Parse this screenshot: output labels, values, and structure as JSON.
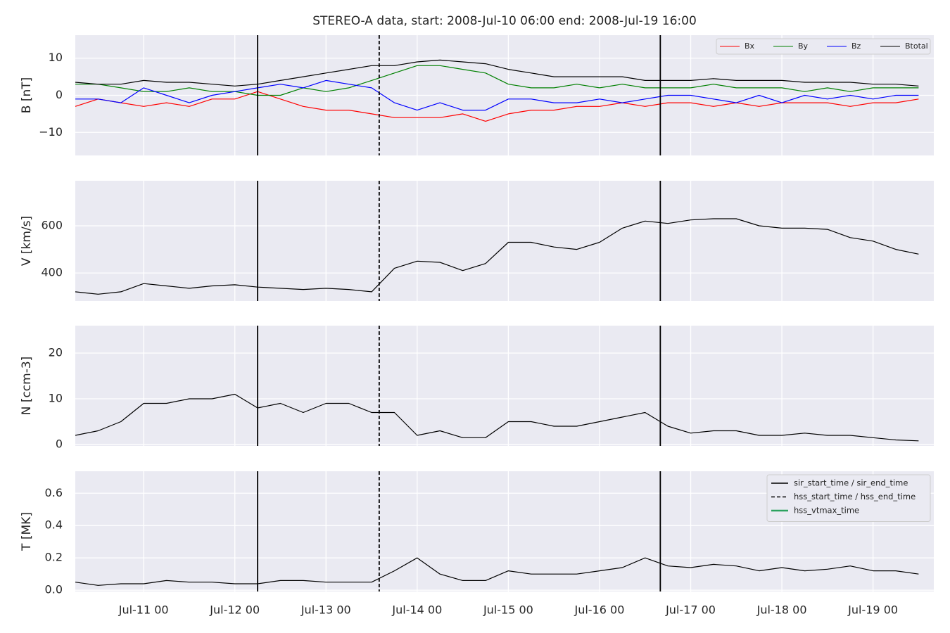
{
  "chart_data": [
    {
      "type": "line",
      "title": "STEREO-A data, start: 2008-Jul-10 06:00  end: 2008-Jul-19 16:00",
      "ylabel": "B [nT]",
      "x": [
        "2008-07-10T06:00",
        "2008-07-10T12:00",
        "2008-07-10T18:00",
        "2008-07-11T00:00",
        "2008-07-11T06:00",
        "2008-07-11T12:00",
        "2008-07-11T18:00",
        "2008-07-12T00:00",
        "2008-07-12T06:00",
        "2008-07-12T12:00",
        "2008-07-12T18:00",
        "2008-07-13T00:00",
        "2008-07-13T06:00",
        "2008-07-13T12:00",
        "2008-07-13T18:00",
        "2008-07-14T00:00",
        "2008-07-14T06:00",
        "2008-07-14T12:00",
        "2008-07-14T18:00",
        "2008-07-15T00:00",
        "2008-07-15T06:00",
        "2008-07-15T12:00",
        "2008-07-15T18:00",
        "2008-07-16T00:00",
        "2008-07-16T06:00",
        "2008-07-16T12:00",
        "2008-07-16T18:00",
        "2008-07-17T00:00",
        "2008-07-17T06:00",
        "2008-07-17T12:00",
        "2008-07-17T18:00",
        "2008-07-18T00:00",
        "2008-07-18T06:00",
        "2008-07-18T12:00",
        "2008-07-18T18:00",
        "2008-07-19T00:00",
        "2008-07-19T06:00",
        "2008-07-19T12:00"
      ],
      "series": [
        {
          "name": "Bx",
          "color": "#ff0000",
          "values": [
            -3,
            -1,
            -2,
            -3,
            -2,
            -3,
            -1,
            -1,
            1,
            -1,
            -3,
            -4,
            -4,
            -5,
            -6,
            -6,
            -6,
            -5,
            -7,
            -5,
            -4,
            -4,
            -3,
            -3,
            -2,
            -3,
            -2,
            -2,
            -3,
            -2,
            -3,
            -2,
            -2,
            -2,
            -3,
            -2,
            -2,
            -1
          ]
        },
        {
          "name": "By",
          "color": "#008000",
          "values": [
            3,
            3,
            2,
            1,
            1,
            2,
            1,
            1,
            0,
            0,
            2,
            1,
            2,
            4,
            6,
            8,
            8,
            7,
            6,
            3,
            2,
            2,
            3,
            2,
            3,
            2,
            2,
            2,
            3,
            2,
            2,
            2,
            1,
            2,
            1,
            2,
            2,
            2
          ]
        },
        {
          "name": "Bz",
          "color": "#0000ff",
          "values": [
            -1,
            -1,
            -2,
            2,
            0,
            -2,
            0,
            1,
            2,
            3,
            2,
            4,
            3,
            2,
            -2,
            -4,
            -2,
            -4,
            -4,
            -1,
            -1,
            -2,
            -2,
            -1,
            -2,
            -1,
            0,
            0,
            -1,
            -2,
            0,
            -2,
            0,
            -1,
            0,
            -1,
            0,
            0
          ]
        },
        {
          "name": "Btotal",
          "color": "#000000",
          "values": [
            3.5,
            3,
            3,
            4,
            3.5,
            3.5,
            3,
            2.5,
            3,
            4,
            5,
            6,
            7,
            8,
            8,
            9,
            9.5,
            9,
            8.5,
            7,
            6,
            5,
            5,
            5,
            5,
            4,
            4,
            4,
            4.5,
            4,
            4,
            4,
            3.5,
            3.5,
            3.5,
            3,
            3,
            2.5
          ]
        }
      ],
      "xlim": [
        "2008-07-10T06:00",
        "2008-07-19T16:00"
      ],
      "xticks": [
        "2008-07-11T00:00",
        "2008-07-12T00:00",
        "2008-07-13T00:00",
        "2008-07-14T00:00",
        "2008-07-15T00:00",
        "2008-07-16T00:00",
        "2008-07-17T00:00",
        "2008-07-18T00:00",
        "2008-07-19T00:00"
      ],
      "ylim": [
        -16.2,
        16.2
      ],
      "yticks": [
        {
          "value": -10,
          "label": "−10"
        },
        0,
        10
      ],
      "grid": true,
      "legend": "upper-right"
    },
    {
      "type": "line",
      "ylabel": "V [km/s]",
      "x": [
        "2008-07-10T06:00",
        "2008-07-10T12:00",
        "2008-07-10T18:00",
        "2008-07-11T00:00",
        "2008-07-11T06:00",
        "2008-07-11T12:00",
        "2008-07-11T18:00",
        "2008-07-12T00:00",
        "2008-07-12T06:00",
        "2008-07-12T12:00",
        "2008-07-12T18:00",
        "2008-07-13T00:00",
        "2008-07-13T06:00",
        "2008-07-13T12:00",
        "2008-07-13T18:00",
        "2008-07-14T00:00",
        "2008-07-14T06:00",
        "2008-07-14T12:00",
        "2008-07-14T18:00",
        "2008-07-15T00:00",
        "2008-07-15T06:00",
        "2008-07-15T12:00",
        "2008-07-15T18:00",
        "2008-07-16T00:00",
        "2008-07-16T06:00",
        "2008-07-16T12:00",
        "2008-07-16T18:00",
        "2008-07-17T00:00",
        "2008-07-17T06:00",
        "2008-07-17T12:00",
        "2008-07-17T18:00",
        "2008-07-18T00:00",
        "2008-07-18T06:00",
        "2008-07-18T12:00",
        "2008-07-18T18:00",
        "2008-07-19T00:00",
        "2008-07-19T06:00",
        "2008-07-19T12:00"
      ],
      "values": [
        320,
        310,
        320,
        355,
        345,
        335,
        345,
        350,
        340,
        335,
        330,
        335,
        330,
        320,
        420,
        450,
        445,
        410,
        440,
        530,
        530,
        510,
        500,
        530,
        590,
        620,
        610,
        625,
        630,
        630,
        600,
        590,
        590,
        585,
        550,
        535,
        500,
        480
      ],
      "color": "#000000",
      "xlim": [
        "2008-07-10T06:00",
        "2008-07-19T16:00"
      ],
      "xticks": [
        "2008-07-11T00:00",
        "2008-07-12T00:00",
        "2008-07-13T00:00",
        "2008-07-14T00:00",
        "2008-07-15T00:00",
        "2008-07-16T00:00",
        "2008-07-17T00:00",
        "2008-07-18T00:00",
        "2008-07-19T00:00"
      ],
      "ylim": [
        281,
        791
      ],
      "yticks": [
        400,
        600
      ],
      "grid": true
    },
    {
      "type": "line",
      "ylabel": "N [ccm-3]",
      "x": [
        "2008-07-10T06:00",
        "2008-07-10T12:00",
        "2008-07-10T18:00",
        "2008-07-11T00:00",
        "2008-07-11T06:00",
        "2008-07-11T12:00",
        "2008-07-11T18:00",
        "2008-07-12T00:00",
        "2008-07-12T06:00",
        "2008-07-12T12:00",
        "2008-07-12T18:00",
        "2008-07-13T00:00",
        "2008-07-13T06:00",
        "2008-07-13T12:00",
        "2008-07-13T18:00",
        "2008-07-14T00:00",
        "2008-07-14T06:00",
        "2008-07-14T12:00",
        "2008-07-14T18:00",
        "2008-07-15T00:00",
        "2008-07-15T06:00",
        "2008-07-15T12:00",
        "2008-07-15T18:00",
        "2008-07-16T00:00",
        "2008-07-16T06:00",
        "2008-07-16T12:00",
        "2008-07-16T18:00",
        "2008-07-17T00:00",
        "2008-07-17T06:00",
        "2008-07-17T12:00",
        "2008-07-17T18:00",
        "2008-07-18T00:00",
        "2008-07-18T06:00",
        "2008-07-18T12:00",
        "2008-07-18T18:00",
        "2008-07-19T00:00",
        "2008-07-19T06:00",
        "2008-07-19T12:00"
      ],
      "values": [
        2,
        3,
        5,
        9,
        9,
        10,
        10,
        11,
        8,
        9,
        7,
        9,
        9,
        7,
        7,
        2,
        3,
        1.5,
        1.5,
        5,
        5,
        4,
        4,
        5,
        6,
        7,
        4,
        2.5,
        3,
        3,
        2,
        2,
        2.5,
        2,
        2,
        1.5,
        1,
        0.8
      ],
      "color": "#000000",
      "xlim": [
        "2008-07-10T06:00",
        "2008-07-19T16:00"
      ],
      "xticks": [
        "2008-07-11T00:00",
        "2008-07-12T00:00",
        "2008-07-13T00:00",
        "2008-07-14T00:00",
        "2008-07-15T00:00",
        "2008-07-16T00:00",
        "2008-07-17T00:00",
        "2008-07-18T00:00",
        "2008-07-19T00:00"
      ],
      "ylim": [
        -0.3,
        26
      ],
      "yticks": [
        0,
        10,
        20
      ],
      "grid": true
    },
    {
      "type": "line",
      "ylabel": "T [MK]",
      "x": [
        "2008-07-10T06:00",
        "2008-07-10T12:00",
        "2008-07-10T18:00",
        "2008-07-11T00:00",
        "2008-07-11T06:00",
        "2008-07-11T12:00",
        "2008-07-11T18:00",
        "2008-07-12T00:00",
        "2008-07-12T06:00",
        "2008-07-12T12:00",
        "2008-07-12T18:00",
        "2008-07-13T00:00",
        "2008-07-13T06:00",
        "2008-07-13T12:00",
        "2008-07-13T18:00",
        "2008-07-14T00:00",
        "2008-07-14T06:00",
        "2008-07-14T12:00",
        "2008-07-14T18:00",
        "2008-07-15T00:00",
        "2008-07-15T06:00",
        "2008-07-15T12:00",
        "2008-07-15T18:00",
        "2008-07-16T00:00",
        "2008-07-16T06:00",
        "2008-07-16T12:00",
        "2008-07-16T18:00",
        "2008-07-17T00:00",
        "2008-07-17T06:00",
        "2008-07-17T12:00",
        "2008-07-17T18:00",
        "2008-07-18T00:00",
        "2008-07-18T06:00",
        "2008-07-18T12:00",
        "2008-07-18T18:00",
        "2008-07-19T00:00",
        "2008-07-19T06:00",
        "2008-07-19T12:00"
      ],
      "values": [
        0.05,
        0.03,
        0.04,
        0.04,
        0.06,
        0.05,
        0.05,
        0.04,
        0.04,
        0.06,
        0.06,
        0.05,
        0.05,
        0.05,
        0.12,
        0.2,
        0.1,
        0.06,
        0.06,
        0.12,
        0.1,
        0.1,
        0.1,
        0.12,
        0.14,
        0.2,
        0.15,
        0.14,
        0.16,
        0.15,
        0.12,
        0.14,
        0.12,
        0.13,
        0.15,
        0.12,
        0.12,
        0.1
      ],
      "color": "#000000",
      "xlim": [
        "2008-07-10T06:00",
        "2008-07-19T16:00"
      ],
      "xticks": [
        {
          "value": "2008-07-11T00:00",
          "label": "Jul-11 00"
        },
        {
          "value": "2008-07-12T00:00",
          "label": "Jul-12 00"
        },
        {
          "value": "2008-07-13T00:00",
          "label": "Jul-13 00"
        },
        {
          "value": "2008-07-14T00:00",
          "label": "Jul-14 00"
        },
        {
          "value": "2008-07-15T00:00",
          "label": "Jul-15 00"
        },
        {
          "value": "2008-07-16T00:00",
          "label": "Jul-16 00"
        },
        {
          "value": "2008-07-17T00:00",
          "label": "Jul-17 00"
        },
        {
          "value": "2008-07-18T00:00",
          "label": "Jul-18 00"
        },
        {
          "value": "2008-07-19T00:00",
          "label": "Jul-19 00"
        }
      ],
      "ylim": [
        -0.008,
        0.736
      ],
      "yticks": [
        {
          "value": 0,
          "label": "0.0"
        },
        0.2,
        0.4,
        0.6
      ],
      "grid": true,
      "legend": "upper-right",
      "events": [
        {
          "name": "sir_start_time / sir_end_time",
          "color": "#000000",
          "dash": "solid",
          "x": [
            "2008-07-12T06:00",
            "2008-07-16T16:00"
          ]
        },
        {
          "name": "hss_start_time / hss_end_time",
          "color": "#000000",
          "dash": "dashed",
          "x": [
            "2008-07-13T14:00"
          ]
        },
        {
          "name": "hss_vtmax_time",
          "color": "#2ca25f",
          "dash": "solid",
          "x": []
        }
      ]
    }
  ]
}
